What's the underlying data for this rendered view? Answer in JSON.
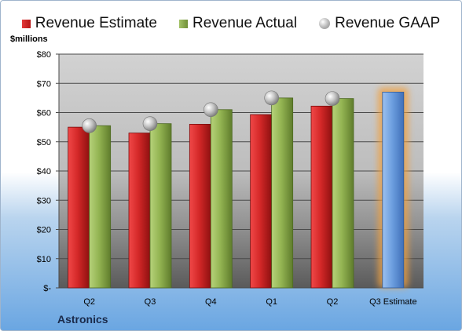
{
  "legend": {
    "estimate": "Revenue Estimate",
    "actual": "Revenue Actual",
    "gaap": "Revenue GAAP"
  },
  "unit_label": "$millions",
  "company": "Astronics",
  "colors": {
    "estimate": "#c62020",
    "actual": "#8aaa4a",
    "gaap": "#b0b0b0",
    "forecast": "#5b8fd6",
    "forecast_glow": "#f0a040"
  },
  "chart_data": {
    "type": "bar",
    "categories": [
      "Q2",
      "Q3",
      "Q4",
      "Q1",
      "Q2",
      "Q3 Estimate"
    ],
    "series": [
      {
        "name": "Revenue Estimate",
        "values": [
          55,
          53,
          56,
          59.3,
          62.2,
          67
        ]
      },
      {
        "name": "Revenue Actual",
        "values": [
          55.5,
          56.2,
          61,
          65,
          64.8,
          null
        ]
      },
      {
        "name": "Revenue GAAP",
        "values": [
          55.5,
          56.2,
          61,
          65,
          64.8,
          null
        ]
      }
    ],
    "y_ticks": [
      "$-",
      "$10",
      "$20",
      "$30",
      "$40",
      "$50",
      "$60",
      "$70",
      "$80"
    ],
    "ylim": [
      0,
      80
    ],
    "y_step": 10,
    "legend_position": "top",
    "grid": true
  }
}
